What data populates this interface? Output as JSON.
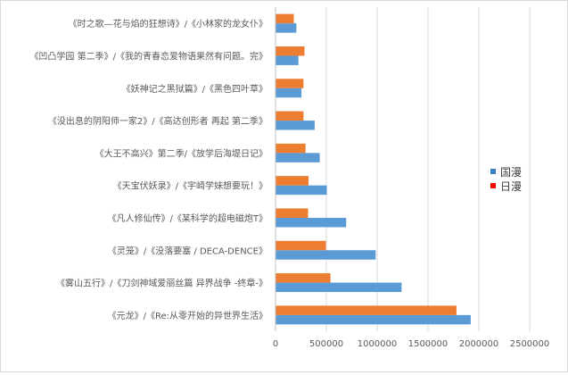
{
  "chart_data": {
    "type": "bar",
    "orientation": "horizontal",
    "categories": [
      "《元龙》/《Re:从零开始的异世界生活》",
      "《雾山五行》/《刀剑神域爱丽丝篇 异界战争 -终章-》",
      "《灵笼》/《没落要塞 / DECA-DENCE》",
      "《凡人修仙传》/《某科学的超电磁炮T》",
      "《天宝伏妖录》/《宇崎学妹想要玩！》",
      "《大王不高兴》第二季/《放学后海堤日记》",
      "《没出息的阴阳师一家2》/《高达创形者 再起 第二季》",
      "《妖神记之黑狱篇》/《黑色四叶草》",
      "《凹凸学园 第二季》/《我的青春恋爱物语果然有问题。完》",
      "《时之歌—花与焰的狂想诗》/《小林家的龙女仆》"
    ],
    "series": [
      {
        "name": "国漫",
        "color": "#5b9bd5",
        "values": [
          1920000,
          1240000,
          985000,
          695000,
          505000,
          435000,
          385000,
          255000,
          225000,
          205000
        ]
      },
      {
        "name": "日漫",
        "color": "#ed7d31",
        "values": [
          1780000,
          540000,
          495000,
          320000,
          325000,
          295000,
          275000,
          275000,
          285000,
          180000
        ]
      }
    ],
    "xlim": [
      0,
      2500000
    ],
    "xticks": [
      0,
      500000,
      1000000,
      1500000,
      2000000,
      2500000
    ],
    "xtick_labels": [
      "0",
      "500000",
      "1000000",
      "1500000",
      "2000000",
      "2500000"
    ],
    "legend_position": "right",
    "legend_marker_colors": [
      "#3a7dc9",
      "#ff0000"
    ],
    "grid": "vertical"
  }
}
